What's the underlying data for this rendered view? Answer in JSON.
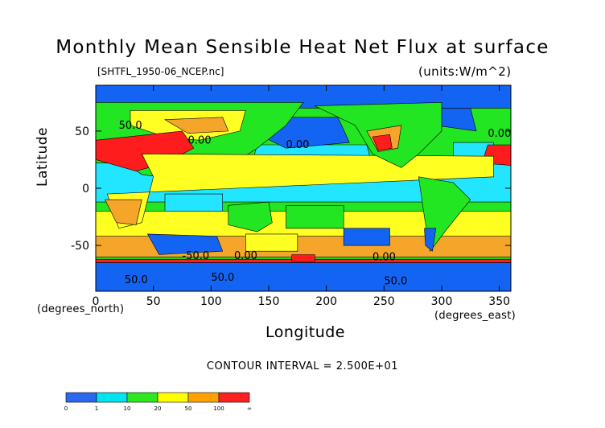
{
  "title": "Monthly Mean Sensible Heat Net Flux at surface",
  "file_label": "[SHTFL_1950-06_NCEP.nc]",
  "units_label": "(units:W/m^2)",
  "contour_interval_text": "CONTOUR INTERVAL = 2.500E+01",
  "chart_data": {
    "type": "heatmap",
    "title": "Monthly Mean Sensible Heat Net Flux at surface",
    "xlabel": "Longitude",
    "xlabel_units": "(degrees_east)",
    "ylabel": "Latitude",
    "ylabel_units": "(degrees_north)",
    "xlim": [
      0,
      360
    ],
    "ylim": [
      -90,
      90
    ],
    "x_ticks": [
      0,
      50,
      100,
      150,
      200,
      250,
      300,
      350
    ],
    "y_ticks": [
      -50,
      0,
      50
    ],
    "contour_labels": [
      {
        "text": "50.0",
        "lon": 20,
        "lat": 52
      },
      {
        "text": "0.00",
        "lon": 80,
        "lat": 39
      },
      {
        "text": "0.00",
        "lon": 165,
        "lat": 35
      },
      {
        "text": "0.00",
        "lon": 340,
        "lat": 45
      },
      {
        "text": "-50.0",
        "lon": 75,
        "lat": -62
      },
      {
        "text": "0.00",
        "lon": 120,
        "lat": -62
      },
      {
        "text": "0.00",
        "lon": 240,
        "lat": -63
      },
      {
        "text": "50.0",
        "lon": 25,
        "lat": -83
      },
      {
        "text": "50.0",
        "lon": 100,
        "lat": -81
      },
      {
        "text": "50.0",
        "lon": 250,
        "lat": -84
      }
    ],
    "colorbar": {
      "tick_labels": [
        "0",
        "1",
        "10",
        "20",
        "50",
        "100",
        "∞"
      ],
      "colors": [
        "#2b68f0",
        "#00e4f0",
        "#2de81e",
        "#ffff00",
        "#ffa200",
        "#ff2020"
      ]
    },
    "value_colors": {
      "negative": "#1464f4",
      "low": "#22e5ff",
      "moderate": "#22e622",
      "elevated": "#ffff22",
      "high": "#f5a52a",
      "extreme": "#ff1c1c"
    }
  }
}
